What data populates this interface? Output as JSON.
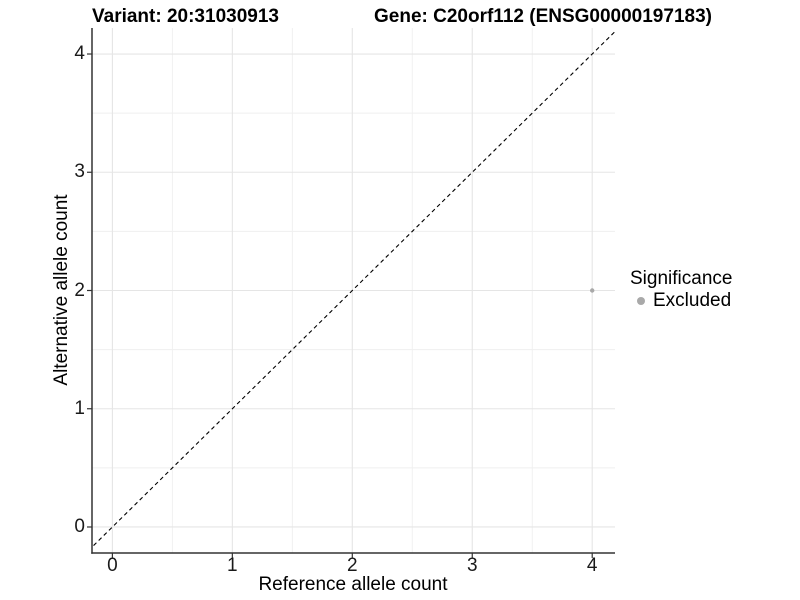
{
  "header": {
    "variant_title": "Variant: 20:31030913",
    "gene_title": "Gene: C20orf112 (ENSG00000197183)"
  },
  "chart_data": {
    "type": "scatter",
    "xlabel": "Reference allele count",
    "ylabel": "Alternative allele count",
    "x_ticks": [
      0,
      1,
      2,
      3,
      4
    ],
    "y_ticks": [
      0,
      1,
      2,
      3,
      4
    ],
    "xlim": [
      -0.17,
      4.19
    ],
    "ylim": [
      -0.22,
      4.22
    ],
    "grid": "major+minor",
    "points": [
      {
        "x": 4,
        "y": 2,
        "significance": "Excluded"
      }
    ],
    "point_color": "#a9a9a9",
    "point_radius": 2.2,
    "identity_line": {
      "slope": 1,
      "intercept": 0,
      "style": "dashed",
      "color": "#000000"
    },
    "legend": {
      "title": "Significance",
      "position": "right",
      "entries": [
        {
          "label": "Excluded",
          "color": "#a9a9a9"
        }
      ]
    },
    "colors": {
      "gridline_major": "#e5e5e5",
      "gridline_minor": "#efefef",
      "axis_line": "#333333"
    }
  }
}
